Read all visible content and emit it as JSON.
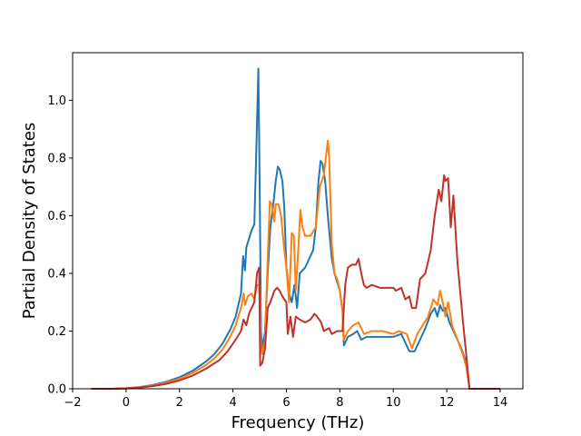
{
  "chart_data": {
    "type": "line",
    "title": "",
    "xlabel": "Frequency (THz)",
    "ylabel": "Partial Density of States",
    "xlim": [
      -2.0,
      14.85
    ],
    "ylim": [
      0.0,
      1.165
    ],
    "xticks": [
      -2,
      0,
      2,
      4,
      6,
      8,
      10,
      12,
      14
    ],
    "xtick_labels": [
      "−2",
      "0",
      "2",
      "4",
      "6",
      "8",
      "10",
      "12",
      "14"
    ],
    "yticks": [
      0.0,
      0.2,
      0.4,
      0.6,
      0.8,
      1.0
    ],
    "ytick_labels": [
      "0.0",
      "0.2",
      "0.4",
      "0.6",
      "0.8",
      "1.0"
    ],
    "grid": false,
    "legend": "none",
    "series": [
      {
        "color": "#1f77b4",
        "points": [
          [
            -1.3,
            0
          ],
          [
            -0.5,
            0
          ],
          [
            0,
            0.002
          ],
          [
            0.5,
            0.006
          ],
          [
            1,
            0.013
          ],
          [
            1.5,
            0.024
          ],
          [
            2,
            0.04
          ],
          [
            2.5,
            0.063
          ],
          [
            3,
            0.095
          ],
          [
            3.3,
            0.12
          ],
          [
            3.6,
            0.155
          ],
          [
            3.9,
            0.205
          ],
          [
            4.1,
            0.25
          ],
          [
            4.3,
            0.33
          ],
          [
            4.38,
            0.46
          ],
          [
            4.45,
            0.41
          ],
          [
            4.5,
            0.49
          ],
          [
            4.6,
            0.52
          ],
          [
            4.7,
            0.55
          ],
          [
            4.8,
            0.57
          ],
          [
            4.88,
            0.85
          ],
          [
            4.95,
            1.11
          ],
          [
            5.0,
            0.7
          ],
          [
            5.05,
            0.2
          ],
          [
            5.1,
            0.14
          ],
          [
            5.2,
            0.2
          ],
          [
            5.3,
            0.4
          ],
          [
            5.4,
            0.56
          ],
          [
            5.5,
            0.63
          ],
          [
            5.6,
            0.72
          ],
          [
            5.68,
            0.77
          ],
          [
            5.75,
            0.76
          ],
          [
            5.85,
            0.72
          ],
          [
            5.92,
            0.63
          ],
          [
            6.0,
            0.42
          ],
          [
            6.1,
            0.33
          ],
          [
            6.2,
            0.3
          ],
          [
            6.3,
            0.36
          ],
          [
            6.4,
            0.28
          ],
          [
            6.5,
            0.4
          ],
          [
            6.6,
            0.41
          ],
          [
            6.7,
            0.42
          ],
          [
            6.8,
            0.44
          ],
          [
            6.9,
            0.46
          ],
          [
            7.0,
            0.48
          ],
          [
            7.1,
            0.56
          ],
          [
            7.2,
            0.72
          ],
          [
            7.28,
            0.79
          ],
          [
            7.35,
            0.78
          ],
          [
            7.45,
            0.72
          ],
          [
            7.55,
            0.6
          ],
          [
            7.7,
            0.45
          ],
          [
            7.8,
            0.4
          ],
          [
            7.9,
            0.37
          ],
          [
            8.0,
            0.34
          ],
          [
            8.1,
            0.27
          ],
          [
            8.15,
            0.15
          ],
          [
            8.3,
            0.18
          ],
          [
            8.5,
            0.19
          ],
          [
            8.65,
            0.2
          ],
          [
            8.8,
            0.17
          ],
          [
            9.0,
            0.18
          ],
          [
            9.5,
            0.18
          ],
          [
            10.0,
            0.18
          ],
          [
            10.3,
            0.19
          ],
          [
            10.5,
            0.15
          ],
          [
            10.6,
            0.13
          ],
          [
            10.8,
            0.13
          ],
          [
            11.0,
            0.17
          ],
          [
            11.2,
            0.21
          ],
          [
            11.4,
            0.26
          ],
          [
            11.55,
            0.28
          ],
          [
            11.65,
            0.25
          ],
          [
            11.75,
            0.29
          ],
          [
            11.85,
            0.27
          ],
          [
            11.95,
            0.28
          ],
          [
            12.1,
            0.23
          ],
          [
            12.3,
            0.19
          ],
          [
            12.5,
            0.15
          ],
          [
            12.7,
            0.1
          ],
          [
            12.85,
            0.0
          ],
          [
            14.0,
            0.0
          ]
        ]
      },
      {
        "color": "#ff7f0e",
        "points": [
          [
            -1.3,
            0
          ],
          [
            -0.5,
            0
          ],
          [
            0,
            0.002
          ],
          [
            0.5,
            0.005
          ],
          [
            1,
            0.011
          ],
          [
            1.5,
            0.021
          ],
          [
            2,
            0.035
          ],
          [
            2.5,
            0.055
          ],
          [
            3,
            0.083
          ],
          [
            3.3,
            0.105
          ],
          [
            3.6,
            0.135
          ],
          [
            3.9,
            0.18
          ],
          [
            4.1,
            0.22
          ],
          [
            4.3,
            0.28
          ],
          [
            4.4,
            0.33
          ],
          [
            4.45,
            0.29
          ],
          [
            4.55,
            0.32
          ],
          [
            4.7,
            0.33
          ],
          [
            4.8,
            0.31
          ],
          [
            4.9,
            0.36
          ],
          [
            5.0,
            0.36
          ],
          [
            5.05,
            0.14
          ],
          [
            5.1,
            0.12
          ],
          [
            5.2,
            0.17
          ],
          [
            5.3,
            0.45
          ],
          [
            5.38,
            0.65
          ],
          [
            5.45,
            0.64
          ],
          [
            5.55,
            0.58
          ],
          [
            5.6,
            0.64
          ],
          [
            5.7,
            0.64
          ],
          [
            5.8,
            0.6
          ],
          [
            5.9,
            0.5
          ],
          [
            6.0,
            0.42
          ],
          [
            6.1,
            0.3
          ],
          [
            6.2,
            0.54
          ],
          [
            6.28,
            0.53
          ],
          [
            6.35,
            0.34
          ],
          [
            6.45,
            0.49
          ],
          [
            6.52,
            0.62
          ],
          [
            6.6,
            0.56
          ],
          [
            6.7,
            0.53
          ],
          [
            6.9,
            0.53
          ],
          [
            7.1,
            0.56
          ],
          [
            7.25,
            0.7
          ],
          [
            7.4,
            0.74
          ],
          [
            7.55,
            0.86
          ],
          [
            7.6,
            0.8
          ],
          [
            7.7,
            0.5
          ],
          [
            7.8,
            0.4
          ],
          [
            7.9,
            0.38
          ],
          [
            8.0,
            0.34
          ],
          [
            8.1,
            0.27
          ],
          [
            8.15,
            0.17
          ],
          [
            8.3,
            0.2
          ],
          [
            8.5,
            0.22
          ],
          [
            8.7,
            0.23
          ],
          [
            8.9,
            0.19
          ],
          [
            9.2,
            0.2
          ],
          [
            9.6,
            0.2
          ],
          [
            10.0,
            0.19
          ],
          [
            10.2,
            0.2
          ],
          [
            10.5,
            0.19
          ],
          [
            10.7,
            0.14
          ],
          [
            10.9,
            0.19
          ],
          [
            11.1,
            0.22
          ],
          [
            11.3,
            0.25
          ],
          [
            11.5,
            0.31
          ],
          [
            11.65,
            0.29
          ],
          [
            11.75,
            0.34
          ],
          [
            11.85,
            0.3
          ],
          [
            11.95,
            0.25
          ],
          [
            12.05,
            0.3
          ],
          [
            12.2,
            0.22
          ],
          [
            12.4,
            0.17
          ],
          [
            12.6,
            0.12
          ],
          [
            12.75,
            0.07
          ],
          [
            12.85,
            0.0
          ],
          [
            14.0,
            0.0
          ]
        ]
      },
      {
        "color": "#c0312b",
        "points": [
          [
            -1.3,
            0
          ],
          [
            -0.5,
            0
          ],
          [
            0,
            0.001
          ],
          [
            0.5,
            0.004
          ],
          [
            1,
            0.009
          ],
          [
            1.5,
            0.017
          ],
          [
            2,
            0.029
          ],
          [
            2.5,
            0.046
          ],
          [
            3,
            0.07
          ],
          [
            3.5,
            0.1
          ],
          [
            3.8,
            0.13
          ],
          [
            4.1,
            0.17
          ],
          [
            4.3,
            0.2
          ],
          [
            4.4,
            0.24
          ],
          [
            4.5,
            0.22
          ],
          [
            4.6,
            0.26
          ],
          [
            4.7,
            0.28
          ],
          [
            4.8,
            0.3
          ],
          [
            4.9,
            0.4
          ],
          [
            4.98,
            0.42
          ],
          [
            5.02,
            0.08
          ],
          [
            5.1,
            0.09
          ],
          [
            5.2,
            0.14
          ],
          [
            5.3,
            0.28
          ],
          [
            5.4,
            0.3
          ],
          [
            5.55,
            0.34
          ],
          [
            5.65,
            0.35
          ],
          [
            5.75,
            0.34
          ],
          [
            5.85,
            0.32
          ],
          [
            6.0,
            0.3
          ],
          [
            6.05,
            0.19
          ],
          [
            6.15,
            0.25
          ],
          [
            6.25,
            0.18
          ],
          [
            6.35,
            0.25
          ],
          [
            6.5,
            0.24
          ],
          [
            6.7,
            0.23
          ],
          [
            6.9,
            0.24
          ],
          [
            7.05,
            0.26
          ],
          [
            7.15,
            0.25
          ],
          [
            7.3,
            0.23
          ],
          [
            7.4,
            0.2
          ],
          [
            7.6,
            0.21
          ],
          [
            7.7,
            0.19
          ],
          [
            7.9,
            0.2
          ],
          [
            8.1,
            0.2
          ],
          [
            8.2,
            0.36
          ],
          [
            8.3,
            0.42
          ],
          [
            8.45,
            0.43
          ],
          [
            8.6,
            0.43
          ],
          [
            8.7,
            0.45
          ],
          [
            8.8,
            0.4
          ],
          [
            8.9,
            0.36
          ],
          [
            9.0,
            0.35
          ],
          [
            9.2,
            0.36
          ],
          [
            9.5,
            0.35
          ],
          [
            9.8,
            0.35
          ],
          [
            10.0,
            0.35
          ],
          [
            10.1,
            0.34
          ],
          [
            10.3,
            0.35
          ],
          [
            10.45,
            0.31
          ],
          [
            10.6,
            0.32
          ],
          [
            10.7,
            0.28
          ],
          [
            10.85,
            0.28
          ],
          [
            11.0,
            0.38
          ],
          [
            11.2,
            0.4
          ],
          [
            11.4,
            0.48
          ],
          [
            11.55,
            0.6
          ],
          [
            11.7,
            0.69
          ],
          [
            11.8,
            0.65
          ],
          [
            11.9,
            0.74
          ],
          [
            11.95,
            0.72
          ],
          [
            12.05,
            0.73
          ],
          [
            12.15,
            0.56
          ],
          [
            12.25,
            0.67
          ],
          [
            12.4,
            0.44
          ],
          [
            12.6,
            0.24
          ],
          [
            12.75,
            0.1
          ],
          [
            12.85,
            0.0
          ],
          [
            14.0,
            0.0
          ]
        ]
      }
    ]
  }
}
